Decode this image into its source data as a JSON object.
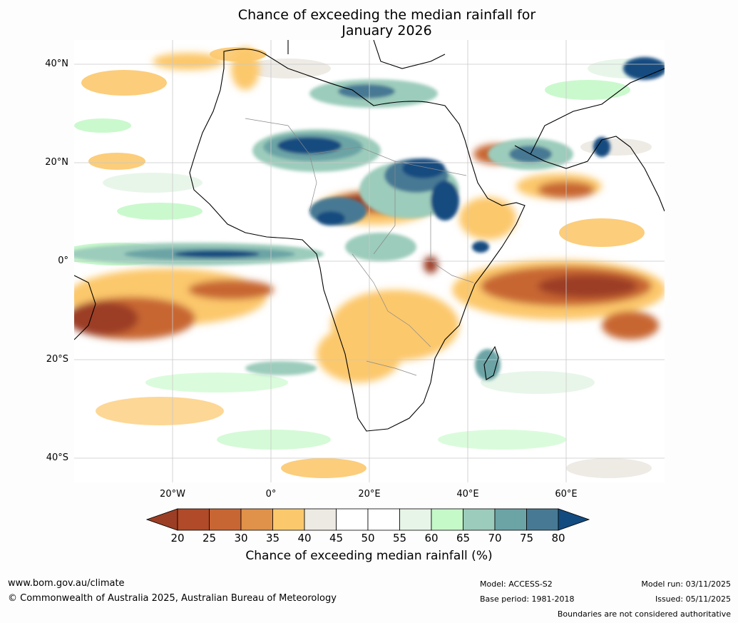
{
  "title_line1": "Chance of exceeding the median rainfall for",
  "title_line2": "January 2026",
  "lat_labels": [
    "40°N",
    "20°N",
    "0°",
    "20°S",
    "40°S"
  ],
  "lon_labels": [
    "20°W",
    "0°",
    "20°E",
    "40°E",
    "60°E"
  ],
  "colorbar": {
    "label": "Chance of exceeding median rainfall (%)",
    "ticks": [
      "20",
      "25",
      "30",
      "35",
      "40",
      "45",
      "50",
      "55",
      "60",
      "65",
      "70",
      "75",
      "80"
    ],
    "colors": [
      "#9c3e25",
      "#b04a28",
      "#c86633",
      "#e0914a",
      "#fcc86c",
      "#ede9e3",
      "#ffffff",
      "#ffffff",
      "#e6f5e8",
      "#c5f9c8",
      "#9cccbb",
      "#6ca4a6",
      "#477994",
      "#124b80"
    ]
  },
  "footer": {
    "website": "www.bom.gov.au/climate",
    "copyright": "© Commonwealth of Australia 2025, Australian Bureau of Meteorology",
    "model": "Model: ACCESS-S2",
    "base_period": "Base period: 1981-2018",
    "model_run": "Model run: 03/11/2025",
    "issued": "Issued: 05/11/2025",
    "disclaimer": "Boundaries are not considered authoritative"
  }
}
